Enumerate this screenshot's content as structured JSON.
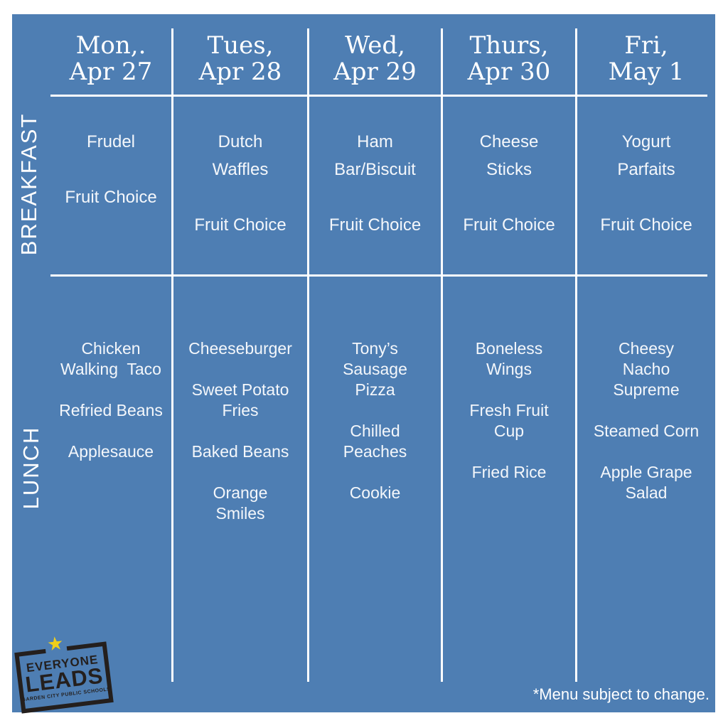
{
  "colors": {
    "panel-blue": "#4E7EB3",
    "grid-white": "#FFFFFF",
    "text-white": "#F4F7FB",
    "logo-dark": "#241F1D",
    "star-yellow": "#EFCE1B"
  },
  "header": {
    "days": [
      "Mon,.\nApr 27",
      "Tues,\nApr 28",
      "Wed,\nApr 29",
      "Thurs,\nApr 30",
      "Fri,\nMay 1"
    ]
  },
  "menu": {
    "breakfast": {
      "label": "BREAKFAST",
      "cells": [
        "Frudel\n\nFruit Choice",
        "Dutch\nWaffles\n\nFruit Choice",
        "Ham\nBar/Biscuit\n\nFruit Choice",
        "Cheese\nSticks\n\nFruit Choice",
        "Yogurt\nParfaits\n\nFruit Choice"
      ]
    },
    "lunch": {
      "label": "LUNCH",
      "cells": [
        "Chicken\nWalking  Taco\n\nRefried Beans\n\nApplesauce",
        "Cheeseburger\n\nSweet Potato\nFries\n\nBaked Beans\n\nOrange\nSmiles",
        "Tony’s\nSausage\nPizza\n\nChilled\nPeaches\n\nCookie",
        "Boneless\nWings\n\nFresh Fruit\nCup\n\nFried Rice",
        "Cheesy\nNacho\nSupreme\n\nSteamed Corn\n\nApple Grape\nSalad"
      ]
    }
  },
  "footer": {
    "note": "*Menu subject to change."
  },
  "logo": {
    "title_top": "EVERYONE",
    "title_main": "LEADS",
    "subtitle": "GARDEN CITY PUBLIC SCHOOLS",
    "star_icon": "★"
  }
}
